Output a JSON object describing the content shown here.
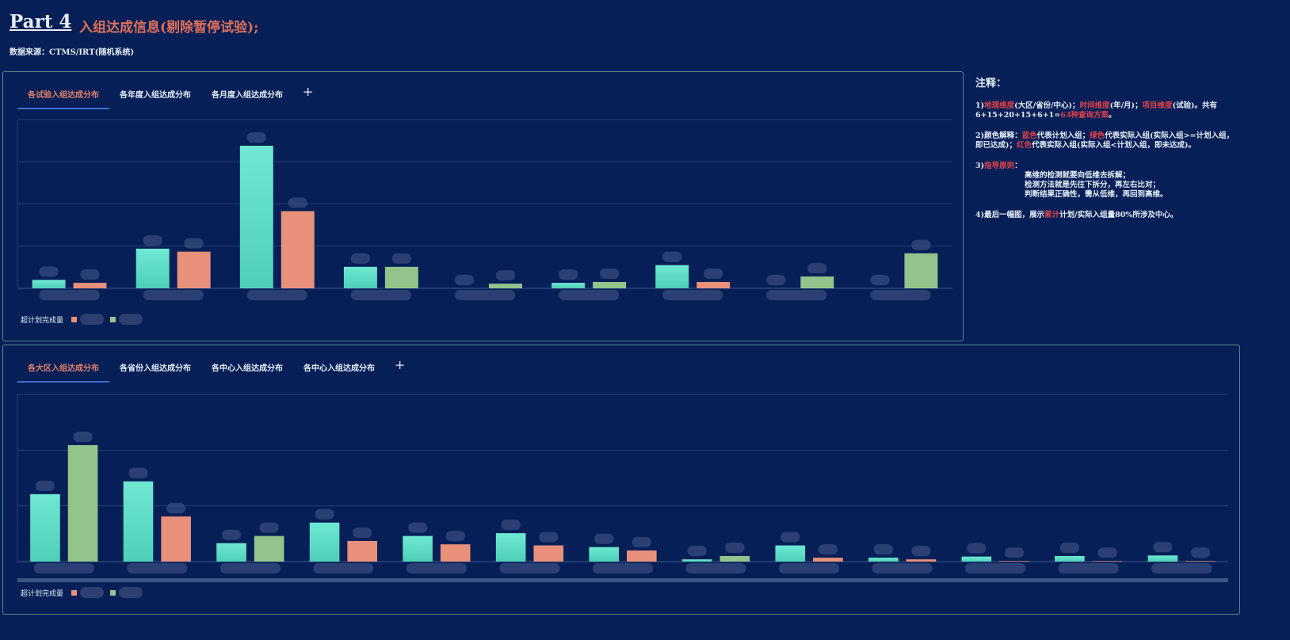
{
  "header": {
    "part": "Part 4",
    "title": "入组达成信息(剔除暂停试验);",
    "source": "数据来源：CTMS/IRT(随机系统)"
  },
  "panel1": {
    "tabs": [
      "各试验入组达成分布",
      "各年度入组达成分布",
      "各月度入组达成分布"
    ],
    "plus": "+",
    "legend": "超计划完成量"
  },
  "panel2": {
    "tabs": [
      "各大区入组达成分布",
      "各省份入组达成分布",
      "各中心入组达成分布",
      "各中心入组达成分布"
    ],
    "plus": "+",
    "legend": "超计划完成量"
  },
  "notes": {
    "title": "注释：",
    "n1": [
      "1)",
      "地理维度",
      "(大区/省份/中心)；",
      "时间维度",
      "(年/月)；",
      "项目维度",
      "(试验)。共有6+15+20+15+6+1=",
      "63种查询方案",
      "。"
    ],
    "n2": [
      "2)颜色解释：",
      "蓝色",
      "代表计划入组；",
      "绿色",
      "代表实际入组(实际入组>=计划入组，即已达成)；",
      "红色",
      "代表实际入组(实际入组<计划入组，即未达成)。"
    ],
    "n3": [
      "3)",
      "指导原则",
      "：",
      "高维的检测就要向低维去拆解；",
      "检测方法就是先往下拆分，再左右比对；",
      "判断结果正确性，需从低维，再回到高维。"
    ],
    "n4": [
      "4)最后一幅图，展示",
      "累计",
      "计划/实际入组量80%所涉及中心。"
    ]
  },
  "colors": {
    "plan": "#5fe0c8",
    "met": "#93c48b",
    "unmet": "#e8907a"
  },
  "chart_data": [
    {
      "type": "bar",
      "title": "各试验入组达成分布",
      "ylim": [
        0,
        4
      ],
      "grid": true,
      "series": [
        {
          "name": "计划入组",
          "values": [
            0.2,
            0.94,
            3.38,
            0.51,
            0,
            0.13,
            0.55,
            0,
            0
          ]
        },
        {
          "name": "实际入组",
          "values": [
            0.13,
            0.87,
            1.83,
            0.51,
            0.11,
            0.15,
            0.15,
            0.28,
            0.83
          ],
          "status": [
            "unmet",
            "unmet",
            "unmet",
            "met",
            "met",
            "met",
            "unmet",
            "met",
            "met"
          ]
        }
      ]
    },
    {
      "type": "bar",
      "title": "各大区入组达成分布",
      "ylim": [
        0,
        3
      ],
      "grid": true,
      "series": [
        {
          "name": "计划入组",
          "values": [
            1.21,
            1.44,
            0.33,
            0.7,
            0.46,
            0.51,
            0.26,
            0.04,
            0.29,
            0.07,
            0.09,
            0.1,
            0.11
          ]
        },
        {
          "name": "实际入组",
          "values": [
            2.09,
            0.81,
            0.46,
            0.37,
            0.31,
            0.29,
            0.2,
            0.1,
            0.07,
            0.04,
            0.01,
            0.01,
            0.01
          ],
          "status": [
            "met",
            "unmet",
            "met",
            "unmet",
            "unmet",
            "unmet",
            "unmet",
            "met",
            "unmet",
            "unmet",
            "unmet",
            "unmet",
            "unmet"
          ]
        }
      ]
    }
  ]
}
